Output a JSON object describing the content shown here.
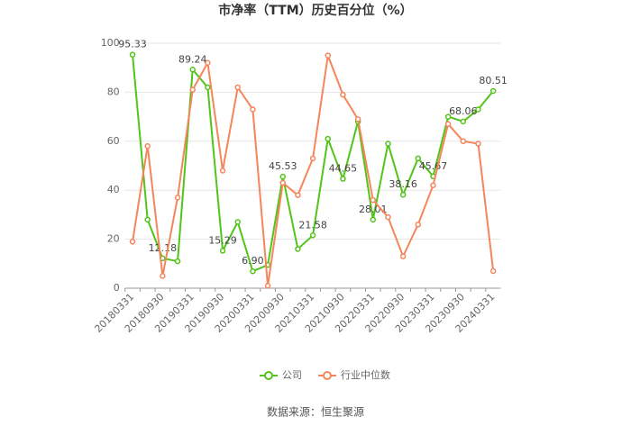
{
  "chart_data": {
    "type": "line",
    "title": "市净率（TTM）历史百分位（%）",
    "source": "数据来源：恒生聚源",
    "categories": [
      "20180331",
      null,
      "20180930",
      null,
      "20190331",
      null,
      "20190930",
      null,
      "20200331",
      null,
      "20200930",
      null,
      "20210331",
      null,
      "20210930",
      null,
      "20220331",
      null,
      "20220930",
      null,
      "20230331",
      null,
      "20230930",
      null,
      "20240331"
    ],
    "series": [
      {
        "name": "公司",
        "color": "#52c41a",
        "values": [
          95.33,
          28,
          12.18,
          11,
          89.24,
          82,
          15.29,
          27,
          6.9,
          9.5,
          45.53,
          16,
          21.58,
          61,
          44.65,
          68,
          28.01,
          59,
          38.16,
          53,
          45.67,
          70,
          68.06,
          73,
          80.51
        ],
        "value_labels": [
          "95.33",
          null,
          "12.18",
          null,
          "89.24",
          null,
          "15.29",
          null,
          "6.90",
          null,
          "45.53",
          null,
          "21.58",
          null,
          "44.65",
          null,
          "28.01",
          null,
          "38.16",
          null,
          "45.67",
          null,
          "68.06",
          null,
          "80.51"
        ]
      },
      {
        "name": "行业中位数",
        "color": "#f5855b",
        "values": [
          19,
          58,
          5,
          37,
          81,
          92,
          48,
          82,
          73,
          1,
          43,
          38,
          53,
          95,
          79,
          69,
          36,
          29,
          13,
          26,
          42,
          67,
          60,
          59,
          7
        ]
      }
    ],
    "ylim": [
      0,
      100
    ],
    "yticks": [
      0,
      20,
      40,
      60,
      80,
      100
    ],
    "grid": true
  }
}
